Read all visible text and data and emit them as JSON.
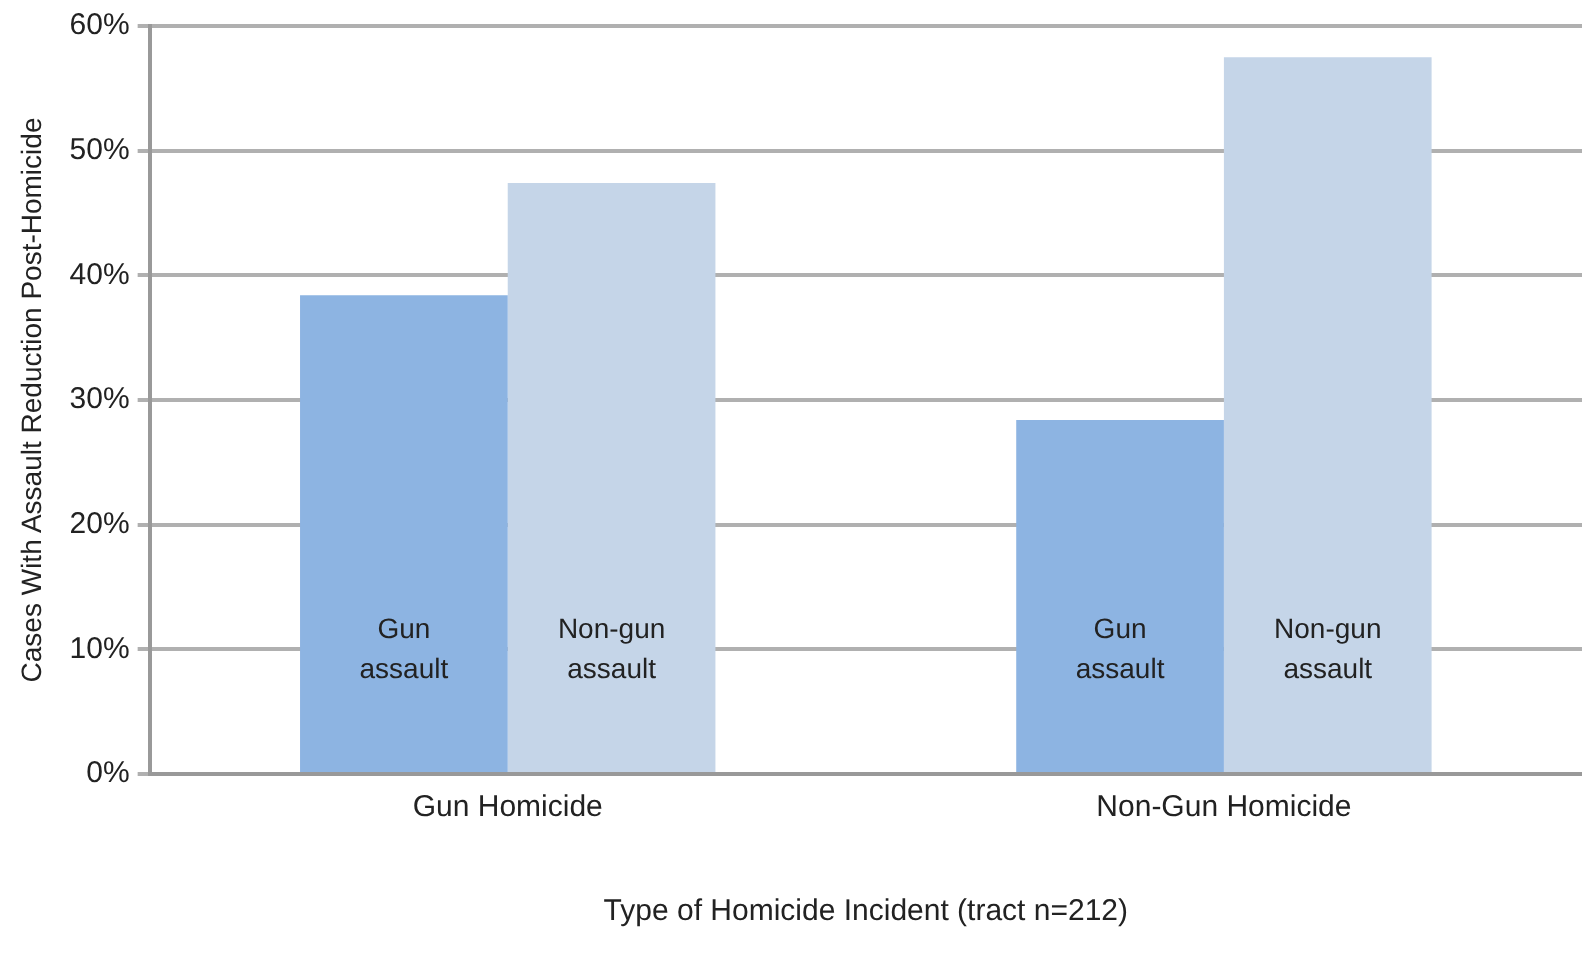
{
  "chart_data": {
    "type": "bar",
    "xlabel": "Type of Homicide Incident (tract n=212)",
    "ylabel": "Cases With Assault Reduction Post-Homicide",
    "categories": [
      "Gun Homicide",
      "Non-Gun Homicide"
    ],
    "series": [
      {
        "name": "Gun assault",
        "color": "#8db4e2",
        "values": [
          38.4,
          28.4
        ]
      },
      {
        "name": "Non-gun assault",
        "color": "#c5d5e8",
        "values": [
          47.4,
          57.5
        ]
      }
    ],
    "ylim": [
      0,
      60
    ],
    "yticks": [
      {
        "value": 0,
        "label": "0%"
      },
      {
        "value": 10,
        "label": "10%"
      },
      {
        "value": 20,
        "label": "20%"
      },
      {
        "value": 30,
        "label": "30%"
      },
      {
        "value": 40,
        "label": "40%"
      },
      {
        "value": 50,
        "label": "50%"
      },
      {
        "value": 60,
        "label": "60%"
      }
    ],
    "grid": "y",
    "legend": false
  }
}
